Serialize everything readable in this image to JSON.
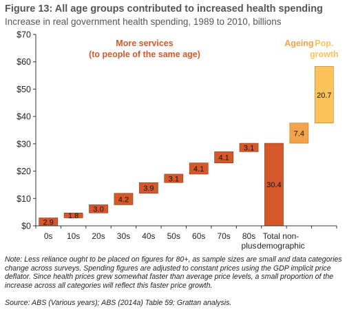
{
  "figure": {
    "title": "Figure 13: All age groups contributed to increased health spending",
    "subtitle": "Increase in real government health spending, 1989 to 2010, billions",
    "note": "Note: Less reliance ought to be placed on figures for 80+, as sample sizes are small and data categories change across surveys. Spending figures are adjusted to constant prices using the GDP implicit price deflator. Since health prices grew somewhat faster than average price levels, a small proportion of the increase across all categories will reflect this faster price growth.",
    "source": "Source:  ABS (Various years); ABS (2014a) Table 59; Grattan analysis."
  },
  "chart_data": {
    "type": "bar",
    "subtype": "waterfall",
    "y_axis": {
      "min": 0,
      "max": 70,
      "step": 10,
      "tick_labels": [
        "$0",
        "$10",
        "$20",
        "$30",
        "$40",
        "$50",
        "$60",
        "$70"
      ]
    },
    "grid": false,
    "categories": [
      "0s",
      "10s",
      "20s",
      "30s",
      "40s",
      "50s",
      "60s",
      "70s",
      "80s plus",
      "Total non-demographic",
      "",
      ""
    ],
    "category_lines": [
      [
        "0s"
      ],
      [
        "10s"
      ],
      [
        "20s"
      ],
      [
        "30s"
      ],
      [
        "40s"
      ],
      [
        "50s"
      ],
      [
        "60s"
      ],
      [
        "70s"
      ],
      [
        "80s",
        "plus"
      ],
      [
        "Total non-",
        "demographic"
      ],
      [],
      []
    ],
    "values": [
      2.9,
      1.8,
      3.0,
      4.2,
      3.9,
      3.1,
      4.1,
      4.1,
      3.1,
      30.4,
      7.4,
      20.7
    ],
    "value_labels": [
      "2.9",
      "1.8",
      "3.0",
      "4.2",
      "3.9",
      "3.1",
      "4.1",
      "4.1",
      "3.1",
      "30.4",
      "7.4",
      "20.7"
    ],
    "bar_kinds": [
      "float",
      "float",
      "float",
      "float",
      "float",
      "float",
      "float",
      "float",
      "float",
      "total",
      "float",
      "float"
    ],
    "bar_groups": [
      "services",
      "services",
      "services",
      "services",
      "services",
      "services",
      "services",
      "services",
      "services",
      "services",
      "ageing",
      "growth"
    ],
    "annotations": [
      {
        "lines": [
          "More services",
          "(to people of the same age)"
        ],
        "group": "services"
      },
      {
        "lines": [
          "Ageing"
        ],
        "group": "ageing"
      },
      {
        "lines": [
          "Pop.",
          "growth"
        ],
        "group": "growth"
      }
    ],
    "colors": {
      "services": "#d4582a",
      "ageing": "#f3a34a",
      "growth": "#fcc35d",
      "services_text": "#d4582a",
      "ageing_text": "#f3a34a",
      "growth_text": "#fcc35d",
      "axis": "#333333",
      "bar_edge": "#8a3a1a"
    }
  }
}
